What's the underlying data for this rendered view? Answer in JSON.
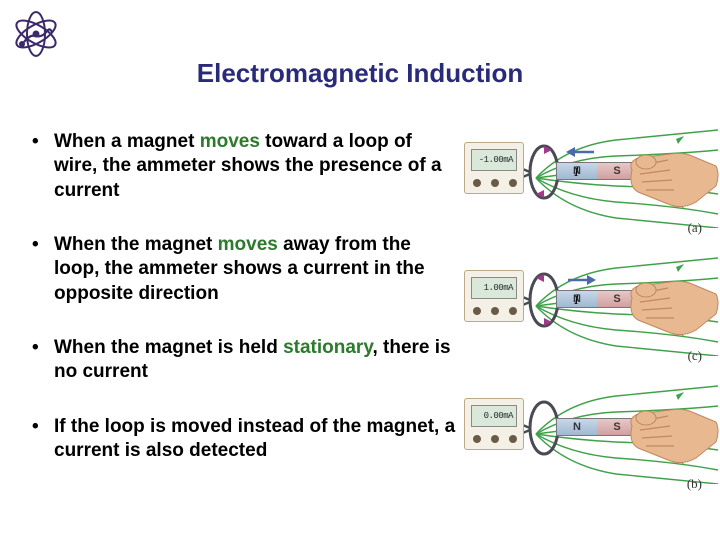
{
  "title": "Electromagnetic Induction",
  "title_color": "#2a2a7a",
  "keyword_color": "#2c7a2c",
  "bullets": [
    {
      "pre": "When a magnet ",
      "kw": "moves",
      "post": " toward a loop of wire, the ammeter shows the presence of a current"
    },
    {
      "pre": "When the magnet ",
      "kw": "moves",
      "post": " away from the loop, the ammeter shows a current in the opposite direction"
    },
    {
      "pre": "When the magnet is held ",
      "kw": "stationary",
      "post": ", there is no current"
    },
    {
      "pre": "If the loop is moved instead of the magnet, a current is also detected",
      "kw": "",
      "post": ""
    }
  ],
  "figures": [
    {
      "reading": "-1.00mA",
      "label": "(a)",
      "motion": "toward"
    },
    {
      "reading": "1.00mA",
      "label": "(c)",
      "motion": "away"
    },
    {
      "reading": "0.00mA",
      "label": "(b)",
      "motion": "none"
    }
  ],
  "colors": {
    "field_line": "#3fa24a",
    "loop_wire": "#4a4a55",
    "current_arrow": "#a23a8a",
    "motion_arrow": "#4a6aa8",
    "hand_skin": "#e8b890",
    "hand_shadow": "#c08860",
    "meter_body": "#f5f0e6",
    "meter_screen": "#d9e8d8"
  }
}
